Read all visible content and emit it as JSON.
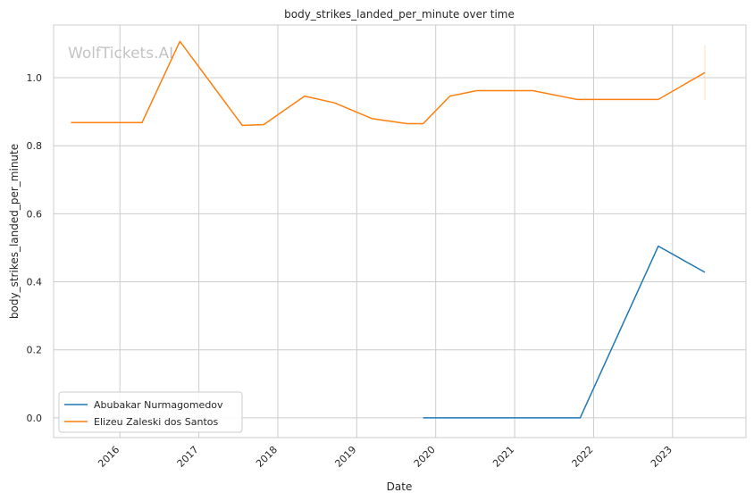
{
  "chart_data": {
    "type": "line",
    "title": "body_strikes_landed_per_minute over time",
    "xlabel": "Date",
    "ylabel": "body_strikes_landed_per_minute",
    "watermark": "WolfTickets.AI",
    "x_ticks": [
      "2016",
      "2017",
      "2018",
      "2019",
      "2020",
      "2021",
      "2022",
      "2023"
    ],
    "y_ticks": [
      "0.0",
      "0.2",
      "0.4",
      "0.6",
      "0.8",
      "1.0"
    ],
    "xlim": [
      2015.16,
      2023.93
    ],
    "ylim": [
      -0.058,
      1.155
    ],
    "grid": true,
    "legend_position": "lower-left",
    "series": [
      {
        "name": "Abubakar Nurmagomedov",
        "color": "#1f77b4",
        "points": [
          [
            2019.84,
            0.0
          ],
          [
            2021.83,
            0.0
          ],
          [
            2022.82,
            0.505
          ],
          [
            2023.41,
            0.428
          ]
        ]
      },
      {
        "name": "Elizeu Zaleski dos Santos",
        "color": "#ff7f0e",
        "points": [
          [
            2015.38,
            0.868
          ],
          [
            2016.28,
            0.868
          ],
          [
            2016.76,
            1.107
          ],
          [
            2017.55,
            0.86
          ],
          [
            2017.82,
            0.862
          ],
          [
            2018.34,
            0.946
          ],
          [
            2018.72,
            0.926
          ],
          [
            2019.19,
            0.88
          ],
          [
            2019.64,
            0.865
          ],
          [
            2019.84,
            0.865
          ],
          [
            2020.18,
            0.946
          ],
          [
            2020.52,
            0.962
          ],
          [
            2021.23,
            0.962
          ],
          [
            2021.79,
            0.936
          ],
          [
            2022.82,
            0.936
          ],
          [
            2023.41,
            1.015
          ]
        ],
        "error_bar": {
          "x": 2023.41,
          "low": 0.935,
          "high": 1.095
        }
      }
    ]
  }
}
